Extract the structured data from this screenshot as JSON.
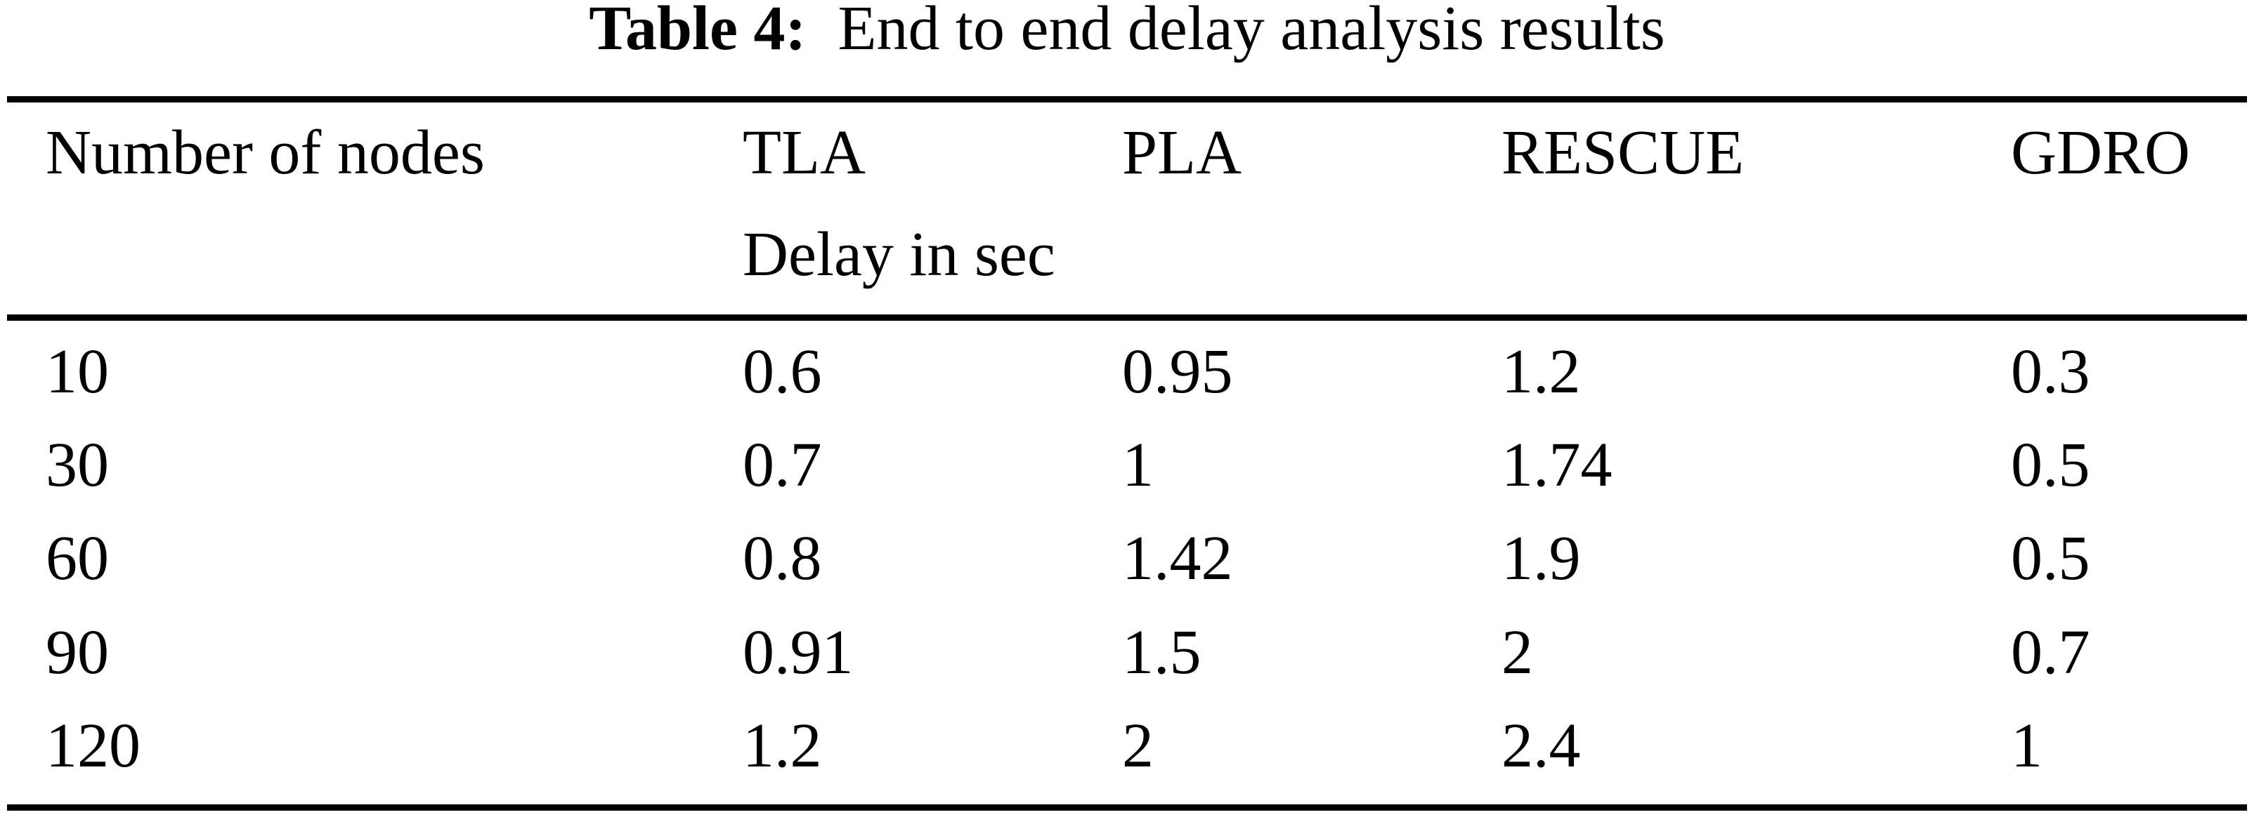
{
  "table": {
    "caption": {
      "label": "Table 4:",
      "text": "End to end delay analysis results"
    },
    "columns": [
      "Number of nodes",
      "TLA",
      "PLA",
      "RESCUE",
      "GDRO"
    ],
    "unit_header": "Delay in sec",
    "rows": [
      [
        "10",
        "0.6",
        "0.95",
        "1.2",
        "0.3"
      ],
      [
        "30",
        "0.7",
        "1",
        "1.74",
        "0.5"
      ],
      [
        "60",
        "0.8",
        "1.42",
        "1.9",
        "0.5"
      ],
      [
        "90",
        "0.91",
        "1.5",
        "2",
        "0.7"
      ],
      [
        "120",
        "1.2",
        "2",
        "2.4",
        "1"
      ]
    ]
  },
  "chart_data": {
    "type": "table",
    "title": "Table 4: End to end delay analysis results",
    "categories": [
      10,
      30,
      60,
      90,
      120
    ],
    "xlabel": "Number of nodes",
    "ylabel": "Delay in sec",
    "series": [
      {
        "name": "TLA",
        "values": [
          0.6,
          0.7,
          0.8,
          0.91,
          1.2
        ]
      },
      {
        "name": "PLA",
        "values": [
          0.95,
          1,
          1.42,
          1.5,
          2
        ]
      },
      {
        "name": "RESCUE",
        "values": [
          1.2,
          1.74,
          1.9,
          2,
          2.4
        ]
      },
      {
        "name": "GDRO",
        "values": [
          0.3,
          0.5,
          0.5,
          0.7,
          1
        ]
      }
    ]
  },
  "colors": {
    "background": "#ffffff",
    "text": "#000000",
    "rule": "#000000"
  }
}
